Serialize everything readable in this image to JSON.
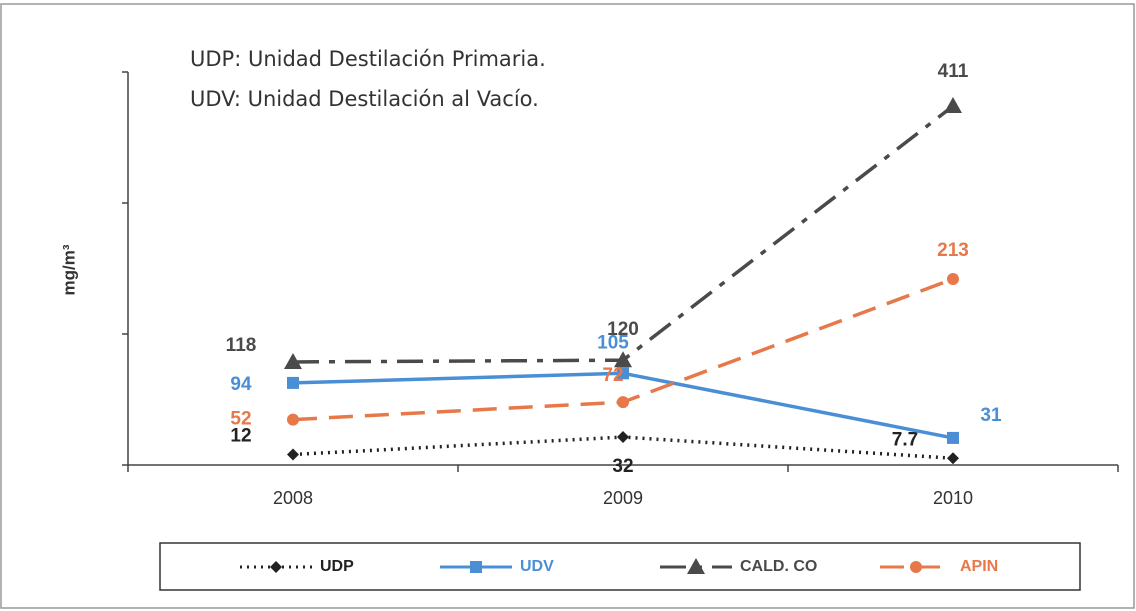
{
  "chart_data": {
    "type": "line",
    "annotations": [
      "UDP: Unidad Destilación Primaria.",
      "UDV: Unidad Destilación al Vacío."
    ],
    "y_label": "mg/m³",
    "categories": [
      "2008",
      "2009",
      "2010"
    ],
    "ylim": [
      0,
      450
    ],
    "yticks": [
      0,
      150,
      300,
      450
    ],
    "series": [
      {
        "name": "UDP",
        "color": "#222222",
        "dash": "2 5",
        "marker": "diamond",
        "values": [
          12,
          32,
          7.7
        ]
      },
      {
        "name": "UDV",
        "color": "#4a8fd6",
        "dash": "none",
        "marker": "square",
        "values": [
          94,
          105,
          31
        ]
      },
      {
        "name": "CALD. CO",
        "color": "#4a4a4a",
        "dash": "26 10 6 10",
        "marker": "triangle",
        "values": [
          118,
          120,
          411
        ]
      },
      {
        "name": "APIN",
        "color": "#e6784a",
        "dash": "24 12",
        "marker": "circle",
        "values": [
          52,
          72,
          213
        ]
      }
    ]
  }
}
